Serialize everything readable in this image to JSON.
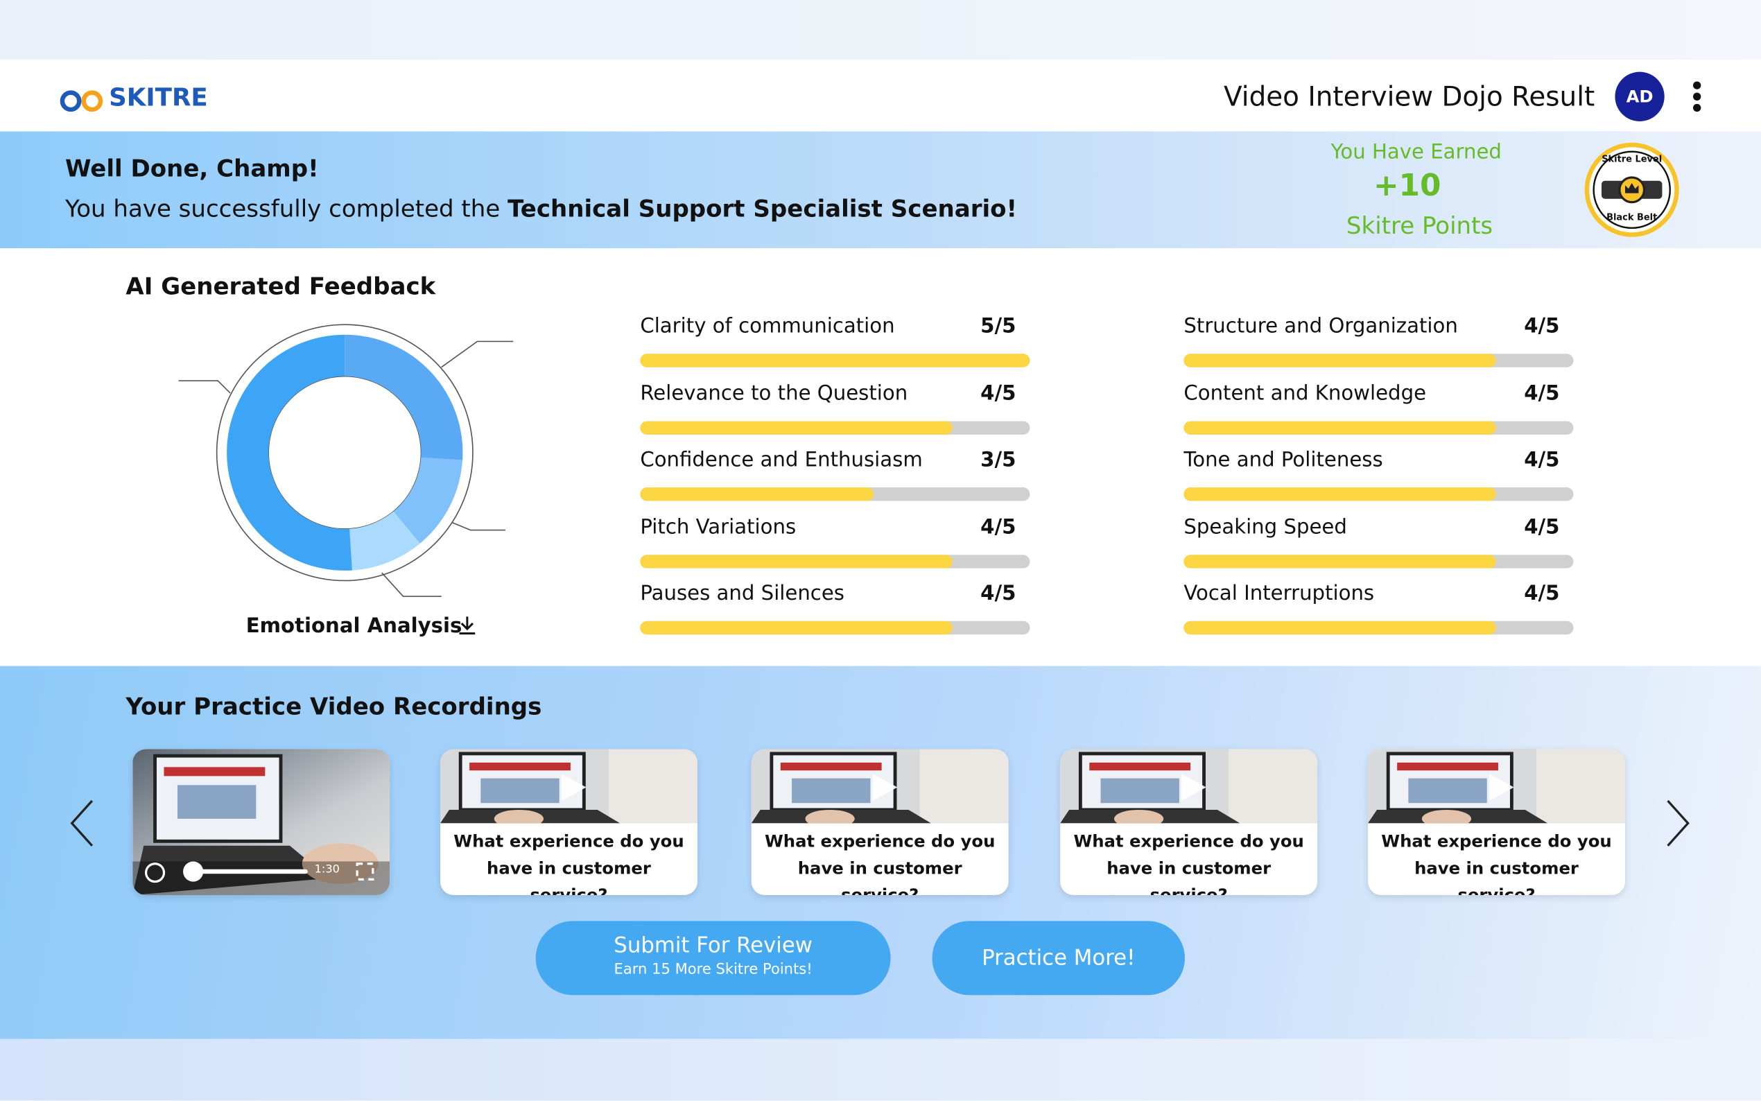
{
  "header": {
    "logo": "SKITRE",
    "title": "Video Interview Dojo Result",
    "avatar": "AD"
  },
  "banner": {
    "greeting": "Well Done, Champ!",
    "message": "You have successfully completed the ",
    "scenario": "Technical Support Specialist Scenario!",
    "earned_label": "You Have Earned",
    "points": "+10",
    "points_unit": "Skitre Points",
    "badge_top": "Skitre Level",
    "badge_bottom": "Black Belt"
  },
  "feedback": {
    "title": "AI Generated Feedback",
    "scale_max": 5,
    "emotional_analysis": {
      "label": "Emotional Analysis",
      "segments": [
        {
          "value": 26,
          "color": "#5aa9f5"
        },
        {
          "value": 13,
          "color": "#80c1fb"
        },
        {
          "value": 10,
          "color": "#aadafd"
        },
        {
          "value": 51,
          "color": "#3ea5f6"
        }
      ]
    },
    "metrics": [
      {
        "name": "Clarity of communication",
        "score": 5,
        "score_label": "5/5"
      },
      {
        "name": "Relevance to the Question",
        "score": 4,
        "score_label": "4/5"
      },
      {
        "name": "Confidence and Enthusiasm",
        "score": 3,
        "score_label": "3/5"
      },
      {
        "name": "Pitch Variations",
        "score": 4,
        "score_label": "4/5"
      },
      {
        "name": "Pauses and Silences",
        "score": 4,
        "score_label": "4/5"
      },
      {
        "name": "Structure and Organization",
        "score": 4,
        "score_label": "4/5"
      },
      {
        "name": "Content and Knowledge",
        "score": 4,
        "score_label": "4/5"
      },
      {
        "name": "Tone and Politeness",
        "score": 4,
        "score_label": "4/5"
      },
      {
        "name": "Speaking Speed",
        "score": 4,
        "score_label": "4/5"
      },
      {
        "name": "Vocal Interruptions",
        "score": 4,
        "score_label": "4/5"
      }
    ]
  },
  "recordings": {
    "title": "Your Practice Video Recordings",
    "playing": {
      "duration": "1:30"
    },
    "videos": [
      {
        "question": "What experience do you have in customer service?"
      },
      {
        "question": "What experience do you have in customer service?"
      },
      {
        "question": "What experience do you have in customer service?"
      },
      {
        "question": "What experience do you have in customer service?"
      }
    ]
  },
  "actions": {
    "submit": "Submit For Review",
    "submit_note": "Earn 15 More Skitre Points!",
    "practice": "Practice More!"
  }
}
